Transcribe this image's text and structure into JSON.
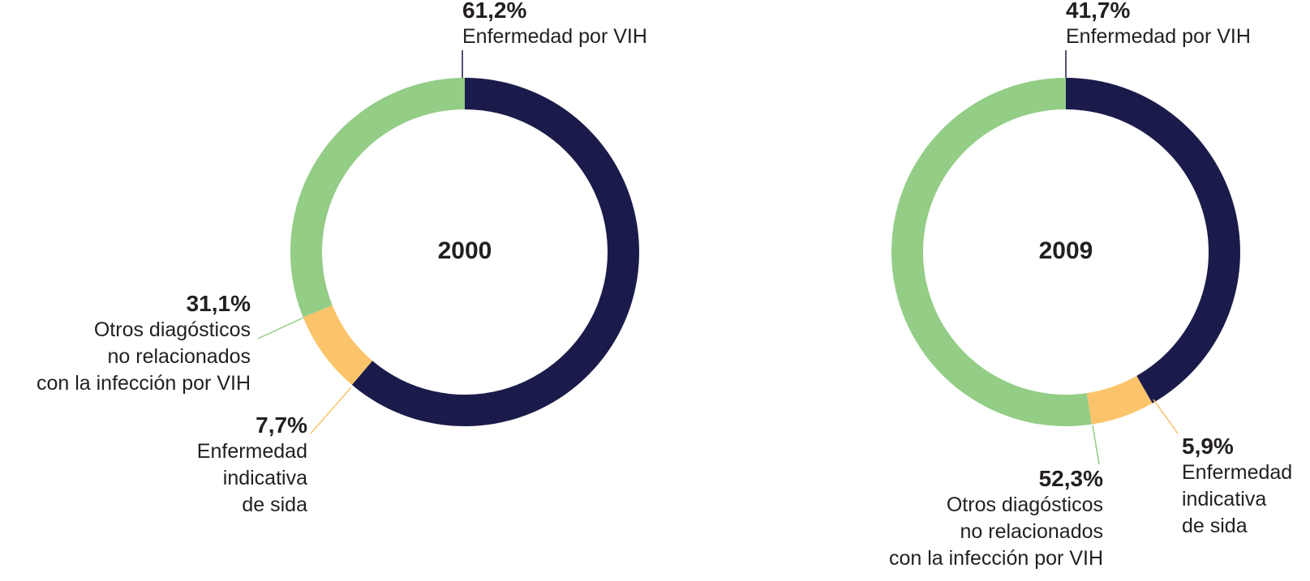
{
  "chart_data": [
    {
      "type": "donut",
      "title": "2000",
      "categories": [
        "Enfermedad por VIH",
        "Enfermedad\nindicativa\nde sida",
        "Otros diagósticos\nno relacionados\ncon la infección por VIH"
      ],
      "values": [
        61.2,
        7.7,
        31.1
      ],
      "value_labels": [
        "61,2%",
        "7,7%",
        "31,1%"
      ],
      "colors": [
        "#1b1b4b",
        "#fbc46a",
        "#93cd86"
      ]
    },
    {
      "type": "donut",
      "title": "2009",
      "categories": [
        "Enfermedad por VIH",
        "Enfermedad\nindicativa\nde sida",
        "Otros diagósticos\nno relacionados\ncon la infección por VIH"
      ],
      "values": [
        41.7,
        5.9,
        52.3
      ],
      "value_labels": [
        "41,7%",
        "5,9%",
        "52,3%"
      ],
      "colors": [
        "#1b1b4b",
        "#fbc46a",
        "#93cd86"
      ]
    }
  ]
}
